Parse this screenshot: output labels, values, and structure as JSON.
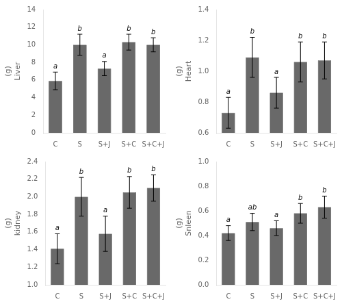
{
  "chart_data": [
    {
      "type": "bar",
      "ylabel": "(g)\nLiver",
      "categories": [
        "C",
        "S",
        "S+J",
        "S+C",
        "S+C+J"
      ],
      "values": [
        5.9,
        10.0,
        7.3,
        10.3,
        10.0
      ],
      "errors": [
        1.0,
        1.2,
        0.8,
        0.9,
        0.8
      ],
      "annotations": [
        "a",
        "b",
        "a",
        "b",
        "b"
      ],
      "color": "#696969",
      "ylim": [
        0,
        14
      ],
      "yticks": [
        0,
        2,
        4,
        6,
        8,
        10,
        12,
        14
      ],
      "grid": false
    },
    {
      "type": "bar",
      "ylabel": "(g)\nHeart",
      "categories": [
        "C",
        "S",
        "S+J",
        "S+C",
        "S+C+J"
      ],
      "values": [
        0.73,
        1.09,
        0.86,
        1.06,
        1.07
      ],
      "errors": [
        0.1,
        0.13,
        0.1,
        0.13,
        0.12
      ],
      "annotations": [
        "a",
        "b",
        "a",
        "b",
        "b"
      ],
      "color": "#696969",
      "ylim": [
        0.6,
        1.4
      ],
      "yticks": [
        0.6,
        0.8,
        {
          "value": 1.0,
          "label": "1.0"
        },
        1.2,
        1.4
      ],
      "grid": false
    },
    {
      "type": "bar",
      "ylabel": "(g)\nkidney",
      "categories": [
        "C",
        "S",
        "S+J",
        "S+C",
        "S+C+J"
      ],
      "values": [
        1.41,
        2.0,
        1.58,
        2.05,
        2.1
      ],
      "errors": [
        0.17,
        0.22,
        0.2,
        0.18,
        0.15
      ],
      "annotations": [
        "a",
        "b",
        "a",
        "b",
        "b"
      ],
      "color": "#696969",
      "ylim": [
        1.0,
        2.4
      ],
      "yticks": [
        {
          "value": 1.0,
          "label": "1.0"
        },
        1.2,
        1.4,
        1.6,
        1.8,
        {
          "value": 2.0,
          "label": "2.0"
        },
        2.2,
        2.4
      ],
      "grid": false
    },
    {
      "type": "bar",
      "ylabel": "(g)\nSnleen",
      "categories": [
        "C",
        "S",
        "S+J",
        "S+C",
        "S+C+J"
      ],
      "values": [
        0.42,
        0.51,
        0.46,
        0.58,
        0.63
      ],
      "errors": [
        0.06,
        0.07,
        0.06,
        0.08,
        0.09
      ],
      "annotations": [
        "a",
        "ab",
        "a",
        "b",
        "b"
      ],
      "color": "#696969",
      "ylim": [
        0.0,
        1.0
      ],
      "yticks": [
        {
          "value": 0.0,
          "label": "0.0"
        },
        0.2,
        0.4,
        0.6,
        0.8,
        {
          "value": 1.0,
          "label": "1.0"
        }
      ],
      "grid": false
    }
  ]
}
